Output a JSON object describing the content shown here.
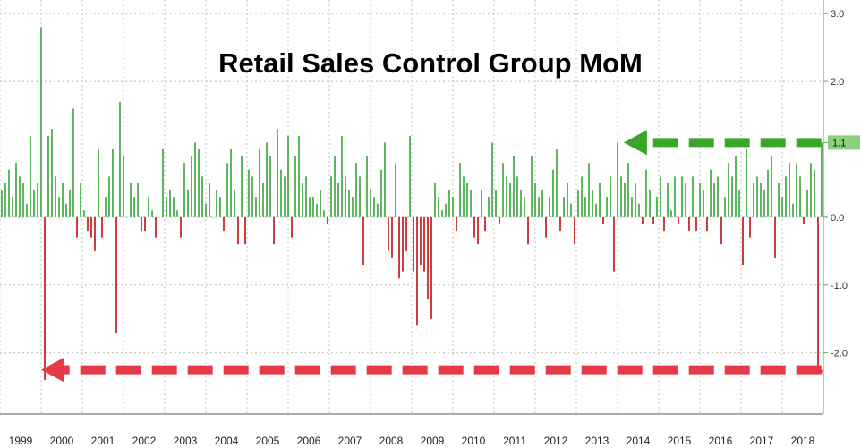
{
  "chart_data": {
    "type": "bar",
    "title": "Retail Sales Control Group MoM",
    "y_ticks": [
      "3.0",
      "2.0",
      "1.1",
      "0.0",
      "-1.0",
      "-2.0"
    ],
    "y_tick_values": [
      3.0,
      2.0,
      1.1,
      0.0,
      -1.0,
      -2.0
    ],
    "ylim": [
      -2.9,
      3.2
    ],
    "x_labels": [
      "1999",
      "2000",
      "2001",
      "2002",
      "2003",
      "2004",
      "2005",
      "2006",
      "2007",
      "2008",
      "2009",
      "2010",
      "2011",
      "2012",
      "2013",
      "2014",
      "2015",
      "2016",
      "2017",
      "2018"
    ],
    "x_start": 1999.0,
    "x_end": 2019.0,
    "grid": true,
    "positive_color": "#4caf50",
    "negative_color": "#c62828",
    "latest_value_badge": "1.1",
    "annotations": [
      {
        "type": "dashed-arrow",
        "color": "#3aa629",
        "from_x": 2018.95,
        "to_x": 2014.15,
        "y": 1.1
      },
      {
        "type": "dashed-arrow",
        "color": "#e63946",
        "from_x": 2018.95,
        "to_x": 2000.0,
        "y": -2.25
      }
    ],
    "values": [
      0.4,
      0.5,
      0.7,
      0.3,
      0.8,
      0.6,
      0.5,
      0.2,
      1.2,
      0.4,
      0.5,
      2.8,
      -2.4,
      1.2,
      1.3,
      0.6,
      0.3,
      0.5,
      0.2,
      0.4,
      1.6,
      -0.3,
      0.5,
      0.1,
      -0.2,
      -0.3,
      -0.5,
      1.0,
      -0.3,
      0.3,
      0.6,
      1.0,
      -1.7,
      1.7,
      0.9,
      0.0,
      0.5,
      0.3,
      0.5,
      -0.2,
      -0.2,
      0.3,
      0.1,
      -0.3,
      0.0,
      1.0,
      0.3,
      0.4,
      0.3,
      0.1,
      -0.3,
      0.8,
      0.4,
      0.9,
      1.1,
      1.0,
      0.6,
      0.2,
      0.5,
      0.0,
      0.4,
      0.3,
      -0.2,
      0.8,
      1.0,
      0.4,
      -0.4,
      0.9,
      -0.4,
      0.7,
      0.6,
      0.3,
      1.0,
      0.5,
      1.1,
      0.9,
      -0.4,
      1.3,
      0.7,
      0.6,
      1.2,
      -0.3,
      0.9,
      1.2,
      0.5,
      0.6,
      0.3,
      0.3,
      0.2,
      0.4,
      0.1,
      -0.1,
      0.6,
      0.9,
      0.5,
      1.2,
      0.6,
      0.4,
      0.3,
      0.8,
      0.6,
      -0.7,
      0.9,
      0.4,
      0.3,
      0.2,
      0.7,
      1.1,
      -0.5,
      -0.6,
      0.8,
      -0.9,
      -0.8,
      -0.5,
      1.2,
      -0.8,
      -1.6,
      -0.7,
      -0.8,
      -1.2,
      -1.5,
      0.5,
      0.3,
      0.1,
      0.2,
      0.4,
      0.3,
      -0.2,
      0.8,
      0.6,
      0.5,
      0.4,
      -0.3,
      -0.4,
      0.4,
      -0.2,
      0.3,
      1.1,
      0.4,
      -0.1,
      0.8,
      0.6,
      0.5,
      0.9,
      0.6,
      0.4,
      0.3,
      -0.4,
      0.9,
      0.5,
      0.3,
      0.4,
      -0.3,
      0.3,
      0.7,
      1.0,
      -0.2,
      0.3,
      0.5,
      0.2,
      -0.4,
      0.4,
      0.6,
      0.3,
      0.8,
      0.4,
      0.2,
      0.5,
      -0.1,
      0.3,
      0.6,
      -0.8,
      1.1,
      0.6,
      0.5,
      0.8,
      0.3,
      0.5,
      0.2,
      -0.1,
      0.7,
      0.4,
      -0.1,
      0.3,
      0.6,
      -0.2,
      0.5,
      0.1,
      0.6,
      -0.1,
      0.6,
      0.5,
      -0.2,
      0.6,
      -0.2,
      0.5,
      0.4,
      -0.2,
      0.7,
      0.5,
      0.6,
      -0.4,
      0.3,
      0.8,
      0.6,
      0.9,
      0.4,
      -0.7,
      1.0,
      -0.3,
      0.5,
      0.6,
      0.5,
      0.4,
      0.7,
      0.9,
      -0.6,
      0.5,
      0.3,
      0.6,
      0.8,
      0.2,
      0.8,
      0.6,
      -0.1,
      0.4,
      0.8,
      0.7,
      -2.3,
      1.1
    ]
  }
}
